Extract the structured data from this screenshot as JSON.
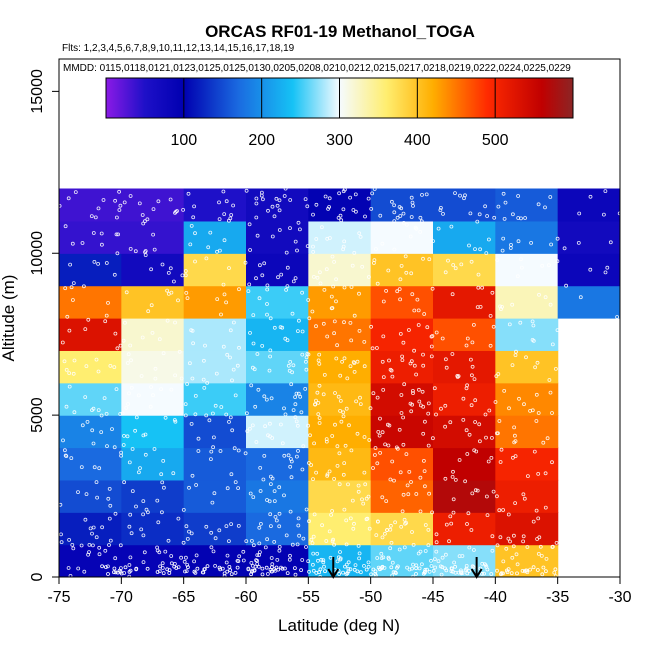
{
  "chart_data": {
    "type": "heatmap",
    "title": "ORCAS RF01-19 Methanol_TOGA",
    "flights_note": "Flts: 1,2,3,4,5,6,7,8,9,10,11,12,13,14,15,16,17,18,19",
    "dates_note": "MMDD: 0115,0118,0121,0123,0125,0125,0130,0205,0208,0210,0212,0215,0217,0218,0219,0222,0224,0225,0229",
    "xlabel": "Latitude (deg N)",
    "ylabel": "Altitude (m)",
    "xlim": [
      -75,
      -30
    ],
    "ylim": [
      0,
      16000
    ],
    "x_ticks": [
      -75,
      -70,
      -65,
      -60,
      -55,
      -50,
      -45,
      -40,
      -35,
      -30
    ],
    "y_ticks": [
      0,
      5000,
      10000,
      15000
    ],
    "x_edges": [
      -75,
      -70,
      -65,
      -60,
      -55,
      -50,
      -45,
      -40,
      -35,
      -30
    ],
    "y_edges": [
      0,
      1000,
      2000,
      3000,
      4000,
      5000,
      6000,
      7000,
      8000,
      9000,
      10000,
      11000,
      12000
    ],
    "z_rows_bottom_to_top": [
      [
        90,
        90,
        95,
        95,
        230,
        260,
        270,
        400,
        null
      ],
      [
        120,
        130,
        140,
        170,
        360,
        380,
        510,
        530,
        null
      ],
      [
        150,
        140,
        160,
        180,
        380,
        460,
        570,
        510,
        null
      ],
      [
        170,
        220,
        160,
        170,
        410,
        470,
        560,
        500,
        null
      ],
      [
        190,
        240,
        150,
        290,
        420,
        550,
        540,
        450,
        null
      ],
      [
        260,
        300,
        250,
        190,
        410,
        540,
        510,
        440,
        null
      ],
      [
        360,
        310,
        280,
        260,
        420,
        510,
        520,
        400,
        null
      ],
      [
        530,
        320,
        280,
        230,
        450,
        500,
        470,
        270,
        null
      ],
      [
        450,
        400,
        430,
        250,
        430,
        470,
        520,
        330,
        180
      ],
      [
        120,
        70,
        380,
        80,
        320,
        400,
        380,
        300,
        80
      ],
      [
        40,
        40,
        220,
        70,
        290,
        300,
        220,
        180,
        70
      ],
      [
        35,
        35,
        50,
        70,
        95,
        150,
        150,
        160,
        80
      ]
    ],
    "colorbar_range": [
      0,
      600
    ],
    "colorbar_ticks": [
      100,
      200,
      300,
      400,
      500
    ],
    "colorbar_stops": [
      {
        "value": 0,
        "color": "#8b1ae6"
      },
      {
        "value": 50,
        "color": "#1e10c8"
      },
      {
        "value": 100,
        "color": "#0000b0"
      },
      {
        "value": 170,
        "color": "#1a6ae0"
      },
      {
        "value": 240,
        "color": "#16c2f5"
      },
      {
        "value": 300,
        "color": "#f5fbff"
      },
      {
        "value": 360,
        "color": "#ffee70"
      },
      {
        "value": 420,
        "color": "#ffae00"
      },
      {
        "value": 490,
        "color": "#ff2a00"
      },
      {
        "value": 560,
        "color": "#c00000"
      },
      {
        "value": 600,
        "color": "#8c2525"
      }
    ],
    "marker_color": "#ffffff",
    "arrows_lat": [
      -53,
      -41.5
    ],
    "legend_placement": "top"
  }
}
